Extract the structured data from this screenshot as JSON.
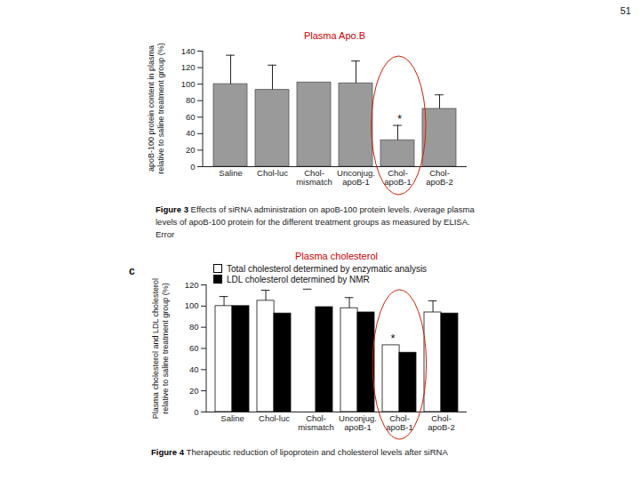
{
  "page_number": 51,
  "chart_data": [
    {
      "type": "bar",
      "title": "Plasma Apo.B",
      "ylabel": "apoB-100 protein content in plasma\nrelative to saline treatment group (%)",
      "categories": [
        "Saline",
        "Chol-luc",
        "Chol-\nmismatch",
        "Unconjug.\napoB-1",
        "Chol-\napoB-1",
        "Chol-\napoB-2"
      ],
      "values": [
        100,
        93,
        102,
        101,
        32,
        70
      ],
      "error_top": [
        135,
        123,
        null,
        128,
        50,
        87
      ],
      "color": "#9a9a9a",
      "annotations": [
        {
          "text": "*",
          "category": "Chol-\napoB-1"
        }
      ],
      "ylim": [
        0,
        140
      ],
      "yticks": [
        0,
        20,
        40,
        60,
        80,
        100,
        120,
        140
      ],
      "caption_label": "Figure 3",
      "caption": "Effects of siRNA administration on apoB-100 protein levels. Average plasma levels of apoB-100 protein for the different treatment groups as measured by ELISA. Error"
    },
    {
      "type": "bar",
      "title": "Plasma cholesterol",
      "panel_label": "c",
      "ylabel": "Plasma cholesterol and LDL cholesterol\nrelative to saline treatment group (%)",
      "categories": [
        "Saline",
        "Chol-luc",
        "Chol-\nmismatch",
        "Unconjug.\napoB-1",
        "Chol-\napoB-1",
        "Chol-\napoB-2"
      ],
      "series": [
        {
          "name": "Total cholesterol determined by enzymatic analysis",
          "color": "#ffffff",
          "values": [
            100,
            105,
            null,
            98,
            63,
            94
          ],
          "error_top": [
            109,
            115,
            116,
            108,
            null,
            105
          ]
        },
        {
          "name": "LDL cholesterol determined by NMR",
          "color": "#000000",
          "values": [
            100,
            93,
            99,
            94,
            56,
            93
          ]
        }
      ],
      "legend": "top-left",
      "annotations": [
        {
          "text": "*",
          "category": "Chol-\napoB-1"
        }
      ],
      "ylim": [
        0,
        120
      ],
      "yticks": [
        0,
        20,
        40,
        60,
        80,
        100,
        120
      ],
      "caption_label": "Figure 4",
      "caption": "Therapeutic reduction of lipoprotein and cholesterol levels after siRNA"
    }
  ]
}
